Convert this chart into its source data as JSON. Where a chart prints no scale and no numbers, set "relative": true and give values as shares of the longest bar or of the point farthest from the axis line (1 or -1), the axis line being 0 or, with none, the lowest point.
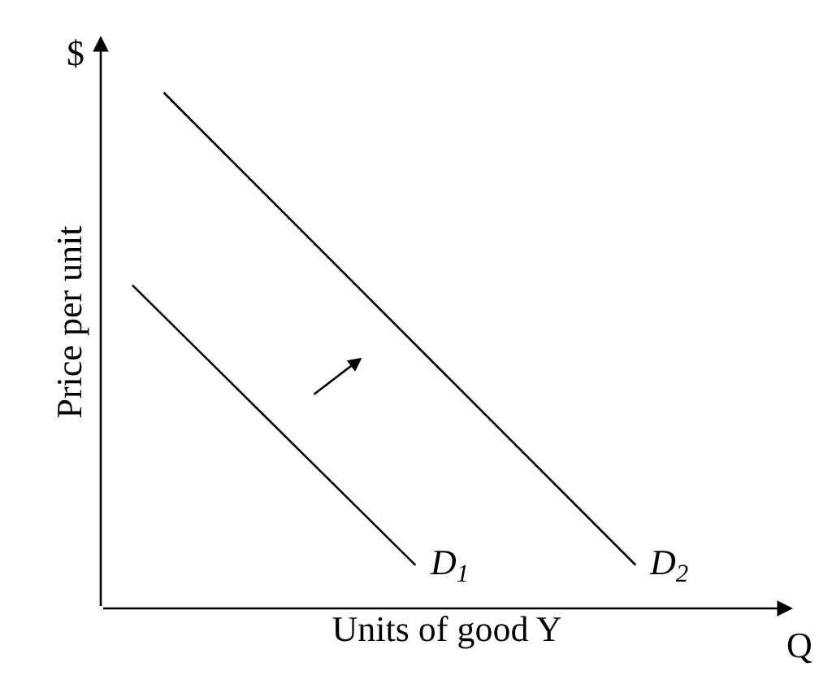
{
  "chart_data": {
    "type": "line",
    "relative": true,
    "xlabel": "Units of good Y",
    "ylabel": "Price per unit",
    "annotations": [
      "$",
      "Q"
    ],
    "categories": [
      null,
      null,
      null,
      null,
      null,
      null,
      null,
      null,
      null,
      null,
      null,
      null,
      null,
      null,
      null,
      null,
      null,
      null,
      null,
      null,
      null,
      null,
      null
    ],
    "series": [
      {
        "name": "D$_{1}$",
        "color": "#000000",
        "values": [
          null,
          0.627,
          null,
          null,
          null,
          null,
          null,
          null,
          null,
          null,
          0.084,
          null,
          null,
          null,
          null,
          null,
          null,
          null,
          null,
          null,
          null,
          null,
          null
        ]
      },
      {
        "name": "D$_{2}$",
        "color": "#000000",
        "values": [
          null,
          null,
          1.0,
          null,
          null,
          null,
          null,
          null,
          null,
          null,
          null,
          null,
          null,
          null,
          null,
          null,
          null,
          0.084,
          null,
          null,
          null,
          null,
          null
        ]
      }
    ]
  }
}
